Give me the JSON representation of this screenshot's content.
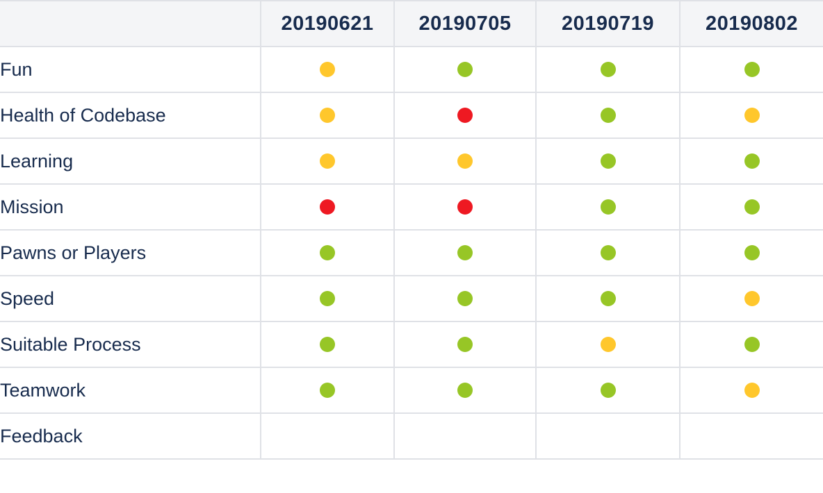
{
  "status_colors": {
    "green": "#97c626",
    "yellow": "#ffc72c",
    "red": "#ee1922"
  },
  "table": {
    "corner_label": "",
    "columns": [
      "20190621",
      "20190705",
      "20190719",
      "20190802"
    ],
    "rows": [
      {
        "label": "Fun",
        "statuses": [
          "yellow",
          "green",
          "green",
          "green"
        ]
      },
      {
        "label": "Health of Codebase",
        "statuses": [
          "yellow",
          "red",
          "green",
          "yellow"
        ]
      },
      {
        "label": "Learning",
        "statuses": [
          "yellow",
          "yellow",
          "green",
          "green"
        ]
      },
      {
        "label": "Mission",
        "statuses": [
          "red",
          "red",
          "green",
          "green"
        ]
      },
      {
        "label": "Pawns or Players",
        "statuses": [
          "green",
          "green",
          "green",
          "green"
        ]
      },
      {
        "label": "Speed",
        "statuses": [
          "green",
          "green",
          "green",
          "yellow"
        ]
      },
      {
        "label": "Suitable Process",
        "statuses": [
          "green",
          "green",
          "yellow",
          "green"
        ]
      },
      {
        "label": "Teamwork",
        "statuses": [
          "green",
          "green",
          "green",
          "yellow"
        ]
      },
      {
        "label": "Feedback",
        "statuses": [
          "",
          "",
          "",
          ""
        ]
      }
    ]
  }
}
